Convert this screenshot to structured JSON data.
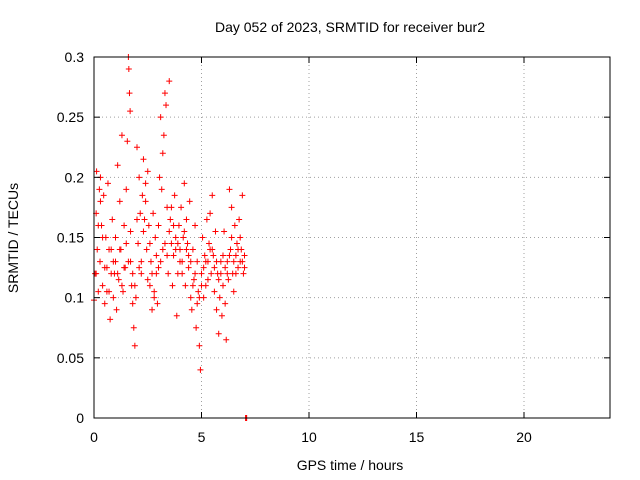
{
  "chart_data": {
    "type": "scatter",
    "title": "Day 052 of 2023, SRMTID for receiver bur2",
    "xlabel": "GPS time / hours",
    "ylabel": "SRMTID / TECUs",
    "xlim": [
      0,
      24
    ],
    "ylim": [
      0,
      0.3
    ],
    "xticks": [
      "0",
      "5",
      "10",
      "15",
      "20"
    ],
    "yticks": [
      "0",
      "0.05",
      "0.1",
      "0.15",
      "0.2",
      "0.25",
      "0.3"
    ],
    "grid": true,
    "marker": "+",
    "color": "#ff0000",
    "series": [
      {
        "points": [
          [
            0.0,
            0.098
          ],
          [
            0.05,
            0.12
          ],
          [
            0.1,
            0.17
          ],
          [
            0.12,
            0.205
          ],
          [
            0.15,
            0.14
          ],
          [
            0.2,
            0.105
          ],
          [
            0.25,
            0.19
          ],
          [
            0.28,
            0.13
          ],
          [
            0.3,
            0.2
          ],
          [
            0.35,
            0.16
          ],
          [
            0.4,
            0.11
          ],
          [
            0.45,
            0.185
          ],
          [
            0.5,
            0.095
          ],
          [
            0.55,
            0.15
          ],
          [
            0.6,
            0.125
          ],
          [
            0.65,
            0.195
          ],
          [
            0.7,
            0.105
          ],
          [
            0.75,
            0.082
          ],
          [
            0.8,
            0.14
          ],
          [
            0.85,
            0.165
          ],
          [
            0.9,
            0.1
          ],
          [
            0.95,
            0.12
          ],
          [
            1.0,
            0.13
          ],
          [
            1.05,
            0.09
          ],
          [
            1.1,
            0.21
          ],
          [
            1.15,
            0.115
          ],
          [
            1.2,
            0.18
          ],
          [
            1.25,
            0.14
          ],
          [
            1.3,
            0.235
          ],
          [
            1.35,
            0.105
          ],
          [
            1.4,
            0.16
          ],
          [
            1.45,
            0.125
          ],
          [
            1.5,
            0.19
          ],
          [
            1.55,
            0.23
          ],
          [
            1.6,
            0.3
          ],
          [
            1.62,
            0.29
          ],
          [
            1.65,
            0.27
          ],
          [
            1.68,
            0.255
          ],
          [
            1.7,
            0.155
          ],
          [
            1.75,
            0.11
          ],
          [
            1.8,
            0.095
          ],
          [
            1.85,
            0.075
          ],
          [
            1.9,
            0.06
          ],
          [
            1.95,
            0.1
          ],
          [
            2.0,
            0.225
          ],
          [
            2.05,
            0.145
          ],
          [
            2.1,
            0.2
          ],
          [
            2.15,
            0.17
          ],
          [
            2.2,
            0.12
          ],
          [
            2.25,
            0.185
          ],
          [
            2.3,
            0.215
          ],
          [
            2.35,
            0.165
          ],
          [
            2.4,
            0.195
          ],
          [
            2.45,
            0.14
          ],
          [
            2.5,
            0.205
          ],
          [
            2.55,
            0.16
          ],
          [
            2.6,
            0.11
          ],
          [
            2.65,
            0.13
          ],
          [
            2.7,
            0.09
          ],
          [
            2.75,
            0.17
          ],
          [
            2.8,
            0.105
          ],
          [
            2.85,
            0.15
          ],
          [
            2.9,
            0.12
          ],
          [
            2.95,
            0.095
          ],
          [
            3.0,
            0.16
          ],
          [
            3.05,
            0.2
          ],
          [
            3.1,
            0.25
          ],
          [
            3.15,
            0.19
          ],
          [
            3.2,
            0.22
          ],
          [
            3.25,
            0.235
          ],
          [
            3.3,
            0.27
          ],
          [
            3.35,
            0.26
          ],
          [
            3.4,
            0.175
          ],
          [
            3.45,
            0.12
          ],
          [
            3.5,
            0.28
          ],
          [
            3.55,
            0.165
          ],
          [
            3.6,
            0.145
          ],
          [
            3.65,
            0.11
          ],
          [
            3.7,
            0.135
          ],
          [
            3.75,
            0.185
          ],
          [
            3.8,
            0.15
          ],
          [
            3.85,
            0.085
          ],
          [
            3.9,
            0.12
          ],
          [
            3.95,
            0.16
          ],
          [
            4.0,
            0.14
          ],
          [
            4.05,
            0.175
          ],
          [
            4.1,
            0.13
          ],
          [
            4.15,
            0.15
          ],
          [
            4.2,
            0.195
          ],
          [
            4.25,
            0.11
          ],
          [
            4.3,
            0.165
          ],
          [
            4.35,
            0.145
          ],
          [
            4.4,
            0.125
          ],
          [
            4.45,
            0.18
          ],
          [
            4.5,
            0.1
          ],
          [
            4.55,
            0.09
          ],
          [
            4.6,
            0.14
          ],
          [
            4.65,
            0.115
          ],
          [
            4.7,
            0.16
          ],
          [
            4.75,
            0.075
          ],
          [
            4.8,
            0.13
          ],
          [
            4.85,
            0.105
          ],
          [
            4.9,
            0.06
          ],
          [
            4.95,
            0.04
          ],
          [
            5.0,
            0.12
          ],
          [
            5.05,
            0.15
          ],
          [
            5.1,
            0.1
          ],
          [
            5.15,
            0.135
          ],
          [
            5.2,
            0.11
          ],
          [
            5.25,
            0.165
          ],
          [
            5.3,
            0.13
          ],
          [
            5.35,
            0.145
          ],
          [
            5.4,
            0.17
          ],
          [
            5.45,
            0.12
          ],
          [
            5.5,
            0.185
          ],
          [
            5.55,
            0.135
          ],
          [
            5.6,
            0.105
          ],
          [
            5.65,
            0.155
          ],
          [
            5.7,
            0.09
          ],
          [
            5.75,
            0.12
          ],
          [
            5.8,
            0.07
          ],
          [
            5.85,
            0.1
          ],
          [
            5.9,
            0.13
          ],
          [
            5.95,
            0.085
          ],
          [
            6.0,
            0.11
          ],
          [
            6.05,
            0.155
          ],
          [
            6.1,
            0.095
          ],
          [
            6.15,
            0.065
          ],
          [
            6.2,
            0.13
          ],
          [
            6.25,
            0.115
          ],
          [
            6.3,
            0.19
          ],
          [
            6.35,
            0.14
          ],
          [
            6.4,
            0.175
          ],
          [
            6.45,
            0.12
          ],
          [
            6.5,
            0.105
          ],
          [
            6.55,
            0.16
          ],
          [
            6.6,
            0.135
          ],
          [
            6.65,
            0.145
          ],
          [
            6.7,
            0.125
          ],
          [
            6.75,
            0.165
          ],
          [
            6.8,
            0.13
          ],
          [
            6.85,
            0.14
          ],
          [
            6.9,
            0.185
          ],
          [
            6.95,
            0.12
          ],
          [
            7.0,
            0.135
          ],
          [
            0.1,
            0.12
          ],
          [
            0.3,
            0.18
          ],
          [
            0.5,
            0.125
          ],
          [
            0.7,
            0.14
          ],
          [
            0.9,
            0.13
          ],
          [
            1.1,
            0.12
          ],
          [
            1.3,
            0.11
          ],
          [
            1.5,
            0.145
          ],
          [
            1.7,
            0.13
          ],
          [
            1.9,
            0.11
          ],
          [
            2.1,
            0.125
          ],
          [
            2.3,
            0.155
          ],
          [
            2.5,
            0.115
          ],
          [
            2.7,
            0.12
          ],
          [
            2.9,
            0.135
          ],
          [
            3.1,
            0.13
          ],
          [
            3.3,
            0.145
          ],
          [
            3.5,
            0.155
          ],
          [
            3.7,
            0.16
          ],
          [
            3.9,
            0.145
          ],
          [
            4.1,
            0.12
          ],
          [
            4.3,
            0.14
          ],
          [
            4.5,
            0.13
          ],
          [
            4.7,
            0.12
          ],
          [
            4.9,
            0.1
          ],
          [
            5.1,
            0.125
          ],
          [
            5.3,
            0.115
          ],
          [
            5.5,
            0.14
          ],
          [
            5.7,
            0.13
          ],
          [
            5.9,
            0.12
          ],
          [
            6.1,
            0.125
          ],
          [
            6.3,
            0.135
          ],
          [
            6.5,
            0.13
          ],
          [
            6.7,
            0.14
          ],
          [
            6.9,
            0.13
          ],
          [
            0.2,
            0.16
          ],
          [
            0.4,
            0.15
          ],
          [
            0.6,
            0.105
          ],
          [
            0.8,
            0.12
          ],
          [
            1.0,
            0.15
          ],
          [
            1.2,
            0.14
          ],
          [
            1.4,
            0.125
          ],
          [
            1.6,
            0.13
          ],
          [
            1.8,
            0.12
          ],
          [
            2.0,
            0.165
          ],
          [
            2.2,
            0.13
          ],
          [
            2.4,
            0.18
          ],
          [
            2.6,
            0.145
          ],
          [
            2.8,
            0.1
          ],
          [
            3.0,
            0.125
          ],
          [
            3.2,
            0.14
          ],
          [
            3.4,
            0.135
          ],
          [
            3.6,
            0.175
          ],
          [
            3.8,
            0.14
          ],
          [
            4.0,
            0.13
          ],
          [
            4.2,
            0.155
          ],
          [
            4.4,
            0.135
          ],
          [
            4.6,
            0.11
          ],
          [
            4.8,
            0.095
          ],
          [
            5.0,
            0.11
          ],
          [
            5.2,
            0.13
          ],
          [
            5.4,
            0.14
          ],
          [
            5.6,
            0.125
          ],
          [
            5.8,
            0.115
          ],
          [
            6.0,
            0.135
          ],
          [
            6.2,
            0.12
          ],
          [
            6.4,
            0.15
          ],
          [
            6.6,
            0.12
          ],
          [
            6.8,
            0.15
          ],
          [
            7.0,
            0.125
          ]
        ]
      },
      {
        "points": [
          [
            7.05,
            0.0
          ],
          [
            7.08,
            0.0
          ],
          [
            7.1,
            0.0
          ]
        ]
      }
    ]
  }
}
